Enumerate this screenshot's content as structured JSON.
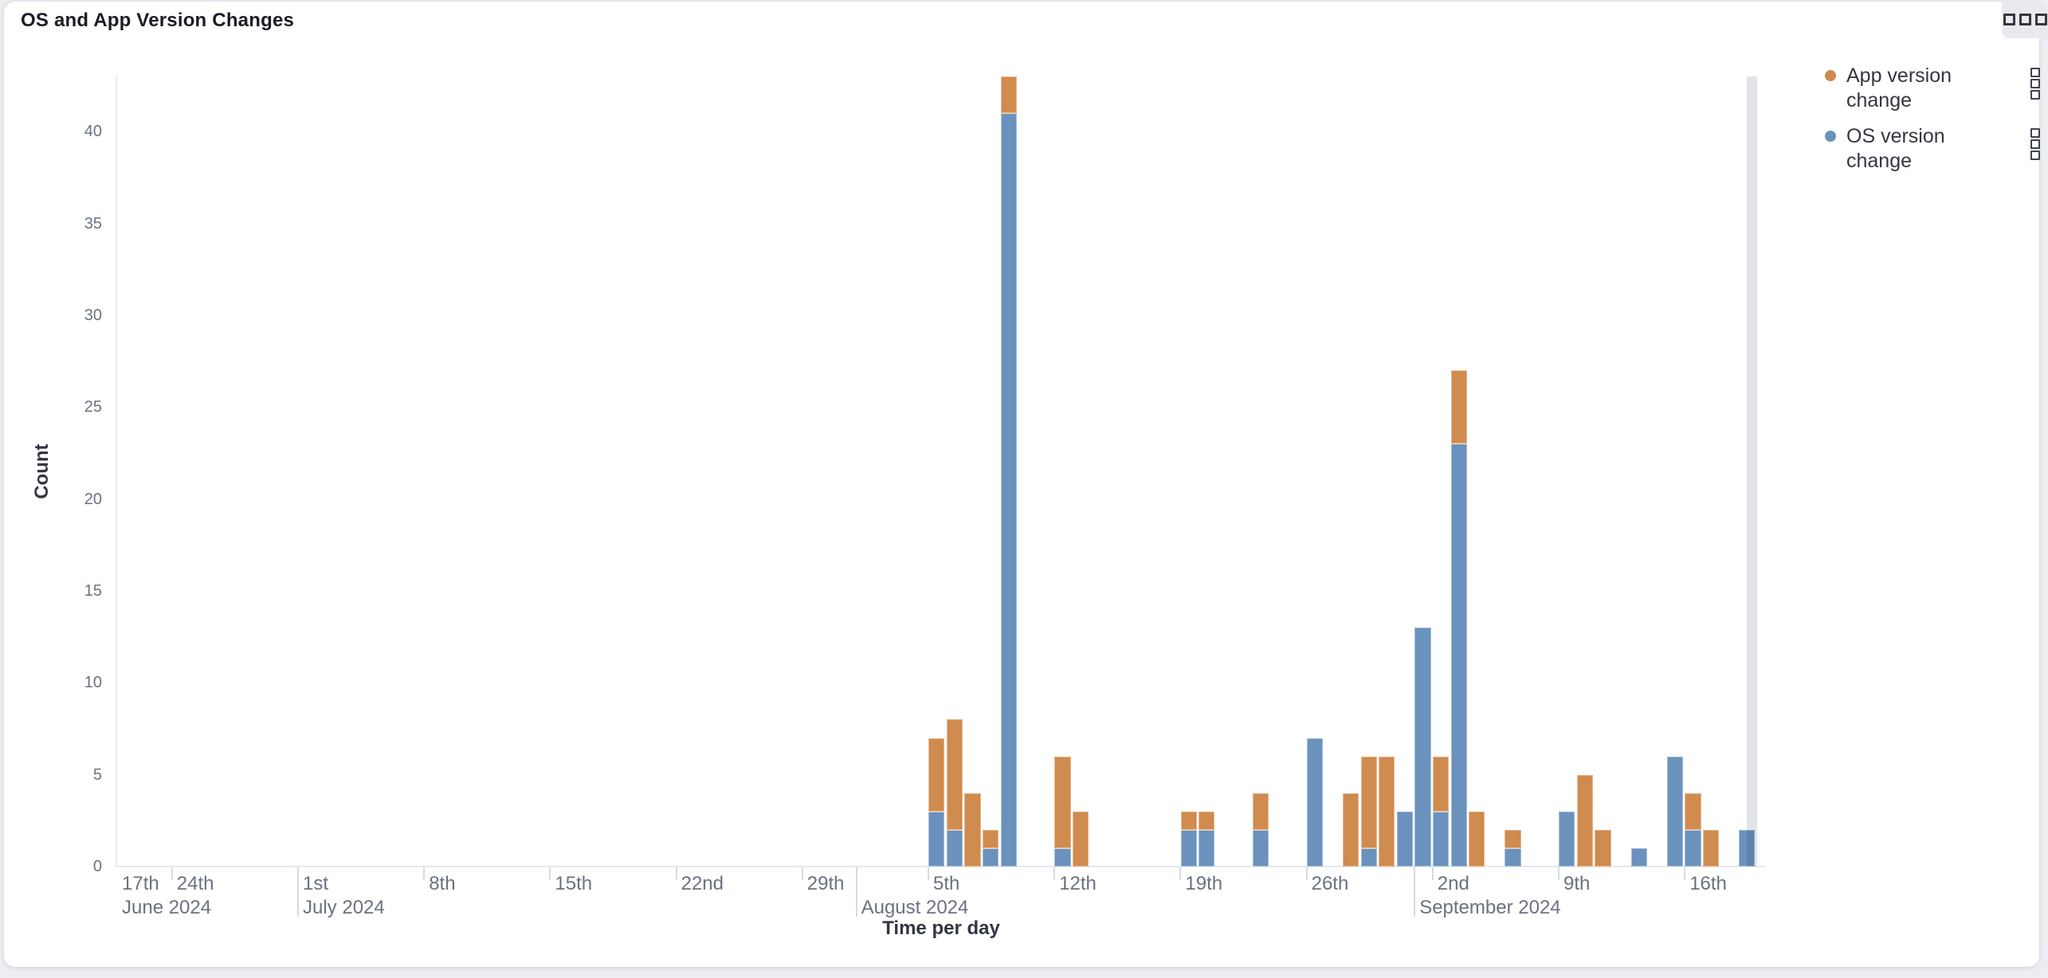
{
  "panel": {
    "title": "OS and App Version Changes"
  },
  "panel_menu": {
    "icon": "boxes-horizontal"
  },
  "legend": {
    "items": [
      {
        "label": "App version change",
        "color": "#d08b4e",
        "series_key": "app"
      },
      {
        "label": "OS version change",
        "color": "#6a92bd",
        "series_key": "os"
      }
    ]
  },
  "chart_data": {
    "type": "bar",
    "stacked": true,
    "x_type": "time",
    "xlabel": "Time per day",
    "ylabel": "Count",
    "ylim": [
      0,
      43
    ],
    "y_ticks": [
      0,
      5,
      10,
      15,
      20,
      25,
      30,
      35,
      40
    ],
    "x_domain": [
      "2024-06-21",
      "2024-09-20"
    ],
    "grid": false,
    "legend_position": "right",
    "series": [
      {
        "key": "os",
        "name": "OS version change",
        "color": "#6a92bd",
        "stack_order": 0
      },
      {
        "key": "app",
        "name": "App version change",
        "color": "#d08b4e",
        "stack_order": 1
      }
    ],
    "x_ticks": [
      {
        "date": "2024-06-17",
        "label": "17th",
        "month_label": "June 2024",
        "clipped": true
      },
      {
        "date": "2024-06-24",
        "label": "24th"
      },
      {
        "date": "2024-07-01",
        "label": "1st",
        "month_label": "July 2024",
        "major": true
      },
      {
        "date": "2024-07-08",
        "label": "8th"
      },
      {
        "date": "2024-07-15",
        "label": "15th"
      },
      {
        "date": "2024-07-22",
        "label": "22nd"
      },
      {
        "date": "2024-07-29",
        "label": "29th"
      },
      {
        "date": "2024-08-01",
        "month_label": "August 2024",
        "major": true
      },
      {
        "date": "2024-08-05",
        "label": "5th"
      },
      {
        "date": "2024-08-12",
        "label": "12th"
      },
      {
        "date": "2024-08-19",
        "label": "19th"
      },
      {
        "date": "2024-08-26",
        "label": "26th"
      },
      {
        "date": "2024-09-01",
        "month_label": "September 2024",
        "major": true
      },
      {
        "date": "2024-09-02",
        "label": "2nd"
      },
      {
        "date": "2024-09-09",
        "label": "9th"
      },
      {
        "date": "2024-09-16",
        "label": "16th"
      }
    ],
    "points": [
      {
        "date": "2024-08-05",
        "os": 3,
        "app": 4
      },
      {
        "date": "2024-08-06",
        "os": 2,
        "app": 6
      },
      {
        "date": "2024-08-07",
        "os": 0,
        "app": 4
      },
      {
        "date": "2024-08-08",
        "os": 1,
        "app": 1
      },
      {
        "date": "2024-08-09",
        "os": 41,
        "app": 2
      },
      {
        "date": "2024-08-12",
        "os": 1,
        "app": 5
      },
      {
        "date": "2024-08-13",
        "os": 0,
        "app": 3
      },
      {
        "date": "2024-08-19",
        "os": 2,
        "app": 1
      },
      {
        "date": "2024-08-20",
        "os": 2,
        "app": 1
      },
      {
        "date": "2024-08-23",
        "os": 2,
        "app": 2
      },
      {
        "date": "2024-08-26",
        "os": 7,
        "app": 0
      },
      {
        "date": "2024-08-28",
        "os": 0,
        "app": 4
      },
      {
        "date": "2024-08-29",
        "os": 1,
        "app": 5
      },
      {
        "date": "2024-08-30",
        "os": 0,
        "app": 6
      },
      {
        "date": "2024-08-31",
        "os": 3,
        "app": 0
      },
      {
        "date": "2024-09-01",
        "os": 13,
        "app": 0
      },
      {
        "date": "2024-09-02",
        "os": 3,
        "app": 3
      },
      {
        "date": "2024-09-03",
        "os": 23,
        "app": 4
      },
      {
        "date": "2024-09-04",
        "os": 0,
        "app": 3
      },
      {
        "date": "2024-09-06",
        "os": 1,
        "app": 1
      },
      {
        "date": "2024-09-09",
        "os": 3,
        "app": 0
      },
      {
        "date": "2024-09-10",
        "os": 0,
        "app": 5
      },
      {
        "date": "2024-09-11",
        "os": 0,
        "app": 2
      },
      {
        "date": "2024-09-13",
        "os": 1,
        "app": 0
      },
      {
        "date": "2024-09-15",
        "os": 6,
        "app": 0
      },
      {
        "date": "2024-09-16",
        "os": 2,
        "app": 2
      },
      {
        "date": "2024-09-17",
        "os": 0,
        "app": 2
      },
      {
        "date": "2024-09-19",
        "os": 2,
        "app": 0
      }
    ],
    "partial_bucket_marker": {
      "from": "2024-09-19T11:30:00",
      "to": "2024-09-20T01:00:00",
      "color": "#e2e4e9"
    }
  }
}
